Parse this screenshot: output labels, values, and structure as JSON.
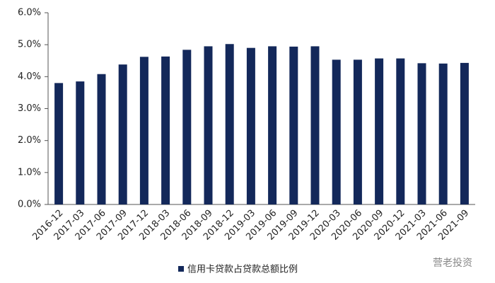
{
  "chart_data": {
    "type": "bar",
    "categories": [
      "2016-12",
      "2017-03",
      "2017-06",
      "2017-09",
      "2017-12",
      "2018-03",
      "2018-06",
      "2018-09",
      "2018-12",
      "2019-03",
      "2019-06",
      "2019-09",
      "2019-12",
      "2020-03",
      "2020-06",
      "2020-09",
      "2020-12",
      "2021-03",
      "2021-06",
      "2021-09"
    ],
    "series": [
      {
        "name": "信用卡贷款占贷款总额比例",
        "color": "#13285a",
        "values": [
          3.8,
          3.85,
          4.08,
          4.38,
          4.62,
          4.63,
          4.84,
          4.95,
          5.02,
          4.9,
          4.95,
          4.94,
          4.95,
          4.53,
          4.53,
          4.57,
          4.57,
          4.42,
          4.41,
          4.43
        ]
      }
    ],
    "ylim": [
      0,
      6
    ],
    "yticks": [
      {
        "value": 0,
        "label": "0.0%"
      },
      {
        "value": 1,
        "label": "1.0%"
      },
      {
        "value": 2,
        "label": "2.0%"
      },
      {
        "value": 3,
        "label": "3.0%"
      },
      {
        "value": 4,
        "label": "4.0%"
      },
      {
        "value": 5,
        "label": "5.0%"
      },
      {
        "value": 6,
        "label": "6.0%"
      }
    ],
    "grid": false,
    "legend": "bottom",
    "watermark": "营老投资"
  }
}
